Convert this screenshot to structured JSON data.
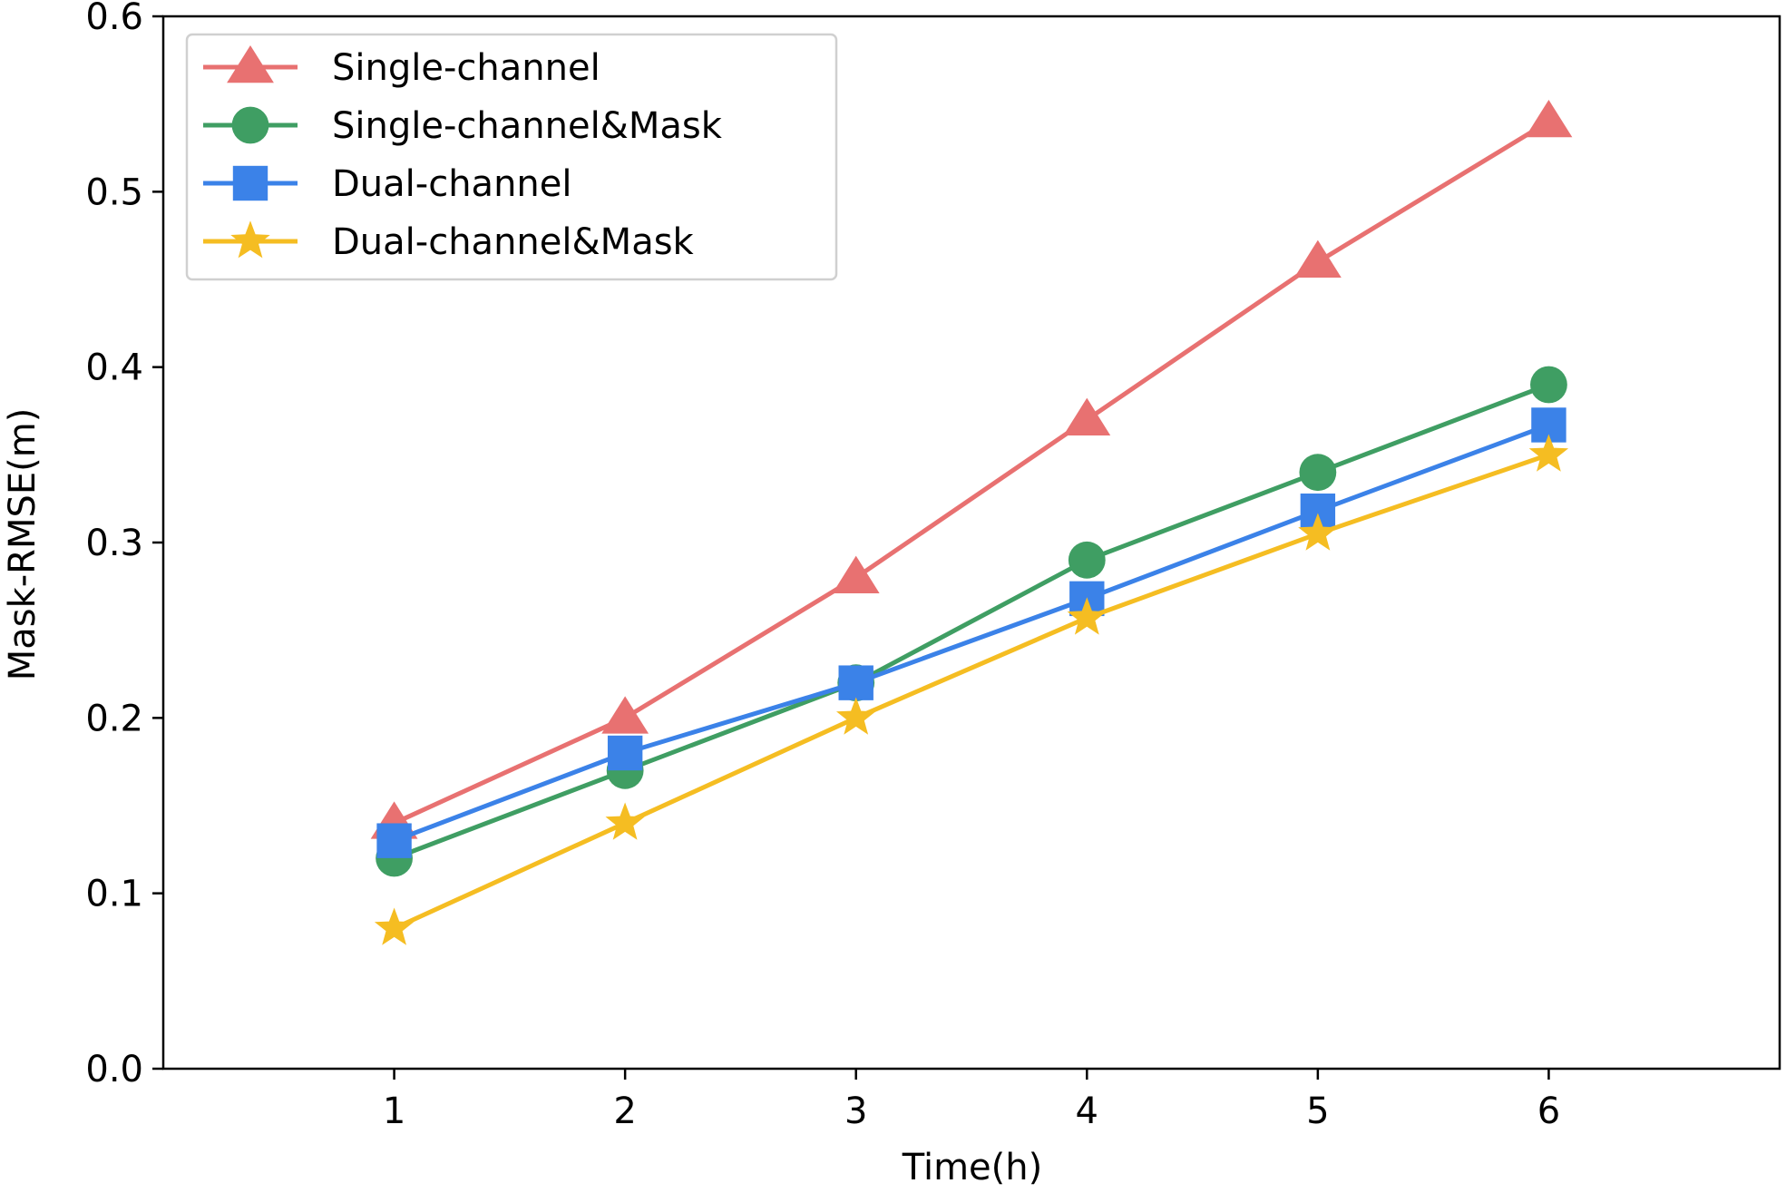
{
  "chart_data": {
    "type": "line",
    "xlabel": "Time(h)",
    "ylabel": "Mask-RMSE(m)",
    "x": [
      1,
      2,
      3,
      4,
      5,
      6
    ],
    "x_ticks": [
      "1",
      "2",
      "3",
      "4",
      "5",
      "6"
    ],
    "y_ticks": [
      "0.0",
      "0.1",
      "0.2",
      "0.3",
      "0.4",
      "0.5",
      "0.6"
    ],
    "xlim": [
      0,
      7
    ],
    "ylim": [
      0,
      0.6
    ],
    "grid": false,
    "legend_position": "top-left",
    "series": [
      {
        "name": "Single-channel",
        "color": "#e87171",
        "marker": "triangle",
        "values": [
          0.14,
          0.2,
          0.28,
          0.37,
          0.46,
          0.54
        ]
      },
      {
        "name": "Single-channel&Mask",
        "color": "#3f9e63",
        "marker": "circle",
        "values": [
          0.12,
          0.17,
          0.22,
          0.29,
          0.34,
          0.39
        ]
      },
      {
        "name": "Dual-channel",
        "color": "#3b82e8",
        "marker": "square",
        "values": [
          0.13,
          0.18,
          0.22,
          0.268,
          0.318,
          0.367
        ]
      },
      {
        "name": "Dual-channel&Mask",
        "color": "#f5bd22",
        "marker": "star",
        "values": [
          0.08,
          0.14,
          0.2,
          0.257,
          0.305,
          0.35
        ]
      }
    ]
  }
}
